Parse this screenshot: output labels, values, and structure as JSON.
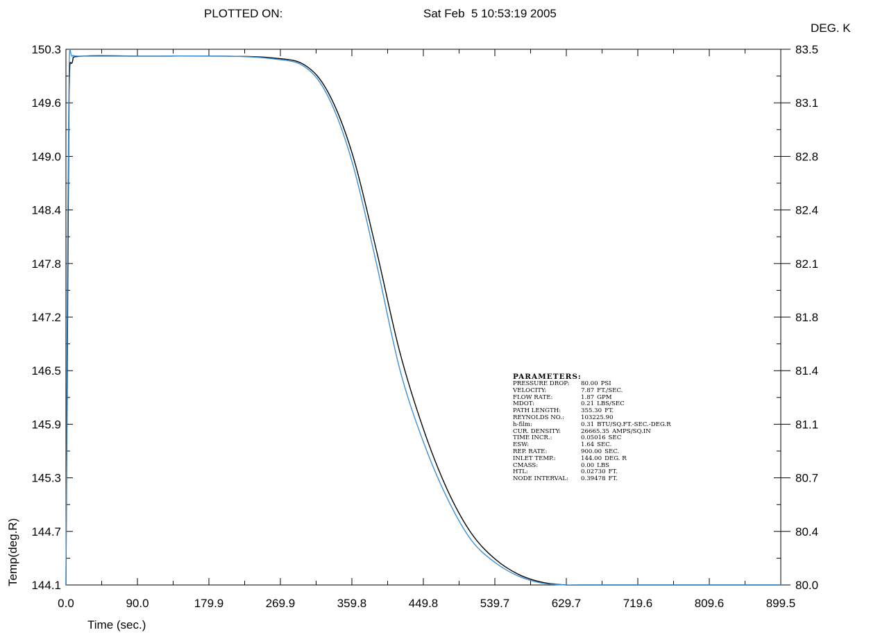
{
  "header": {
    "plotted_label": "PLOTTED ON:",
    "timestamp": "Sat Feb  5 10:53:19 2005"
  },
  "chart_data": {
    "type": "line",
    "xlabel": "Time (sec.)",
    "ylabel": "Temp(deg.R)",
    "y2label": "DEG. K",
    "xlim": [
      0.0,
      899.5
    ],
    "ylim": [
      144.1,
      150.3
    ],
    "y2lim": [
      80.0,
      83.5
    ],
    "x_ticks": [
      "0.0",
      "90.0",
      "179.9",
      "269.9",
      "359.8",
      "449.8",
      "539.7",
      "629.7",
      "719.6",
      "809.6",
      "899.5"
    ],
    "y_ticks": [
      "150.3",
      "149.6",
      "149.0",
      "148.4",
      "147.8",
      "147.2",
      "146.5",
      "145.9",
      "145.3",
      "144.7",
      "144.1"
    ],
    "y2_ticks": [
      "83.5",
      "83.1",
      "82.8",
      "82.4",
      "82.1",
      "81.8",
      "81.4",
      "81.1",
      "80.7",
      "80.4",
      "80.0"
    ],
    "grid": false,
    "series": [
      {
        "color": "#000000",
        "x": [
          0,
          2,
          4,
          8,
          20,
          100,
          200,
          260,
          300,
          330,
          360,
          390,
          420,
          450,
          480,
          510,
          540,
          570,
          600,
          630,
          660,
          900
        ],
        "y": [
          144.1,
          147.0,
          149.8,
          150.15,
          150.22,
          150.22,
          150.22,
          150.2,
          150.12,
          149.8,
          149.1,
          148.0,
          146.8,
          145.9,
          145.2,
          144.7,
          144.4,
          144.22,
          144.13,
          144.1,
          144.1,
          144.1
        ]
      },
      {
        "color": "#3a8fd6",
        "x": [
          0,
          2,
          4,
          8,
          20,
          100,
          200,
          260,
          300,
          330,
          360,
          390,
          420,
          450,
          480,
          510,
          540,
          570,
          600,
          630,
          660,
          900
        ],
        "y": [
          144.1,
          148.0,
          150.1,
          150.22,
          150.22,
          150.22,
          150.22,
          150.19,
          150.1,
          149.75,
          149.0,
          147.85,
          146.6,
          145.75,
          145.1,
          144.62,
          144.36,
          144.2,
          144.12,
          144.1,
          144.1,
          144.1
        ]
      }
    ]
  },
  "parameters": {
    "title": "PARAMETERS:",
    "rows": [
      {
        "name": "PRESSURE DROP:",
        "value": "80.00",
        "unit": "PSI"
      },
      {
        "name": "VELOCITY:",
        "value": "7.87",
        "unit": "FT./SEC."
      },
      {
        "name": "FLOW RATE:",
        "value": "1.87",
        "unit": "GPM"
      },
      {
        "name": "MDOT:",
        "value": "0.21",
        "unit": "LBS/SEC"
      },
      {
        "name": "PATH LENGTH:",
        "value": "355.30",
        "unit": "FT."
      },
      {
        "name": "REYNOLDS NO.:",
        "value": "103225.90",
        "unit": ""
      },
      {
        "name": "h-film:",
        "value": "0.31",
        "unit": "BTU/SQ.FT.-SEC.-DEG.R"
      },
      {
        "name": "CUR. DENSITY:",
        "value": "26665.35",
        "unit": "AMPS/SQ.IN"
      },
      {
        "name": "TIME INCR.:",
        "value": "0.05016",
        "unit": "SEC"
      },
      {
        "name": "ESW:",
        "value": "1.64",
        "unit": "SEC."
      },
      {
        "name": "REP. RATE:",
        "value": "900.00",
        "unit": "SEC."
      },
      {
        "name": "INLET TEMP.:",
        "value": "144.00",
        "unit": "DEG. R"
      },
      {
        "name": "CMASS:",
        "value": "0.00",
        "unit": "LBS"
      },
      {
        "name": "HTL:",
        "value": "0.02730",
        "unit": "FT."
      },
      {
        "name": "NODE INTERVAL:",
        "value": "0.39478",
        "unit": "FT."
      }
    ]
  }
}
